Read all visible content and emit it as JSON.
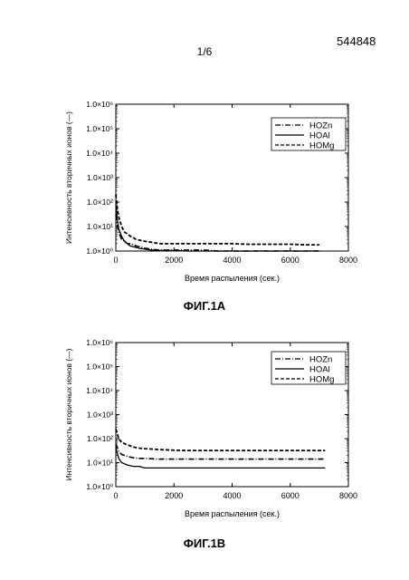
{
  "header": {
    "page": "1/6",
    "doc_number": "544848"
  },
  "chart_data": [
    {
      "type": "line",
      "caption": "ФИГ.1А",
      "xlabel": "Время распыления (сек.)",
      "ylabel": "Интенсивность вторичных ионов (—)",
      "x_ticks": [
        "0",
        "2000",
        "4000",
        "6000",
        "8000"
      ],
      "y_ticks": [
        "1.0×10⁰",
        "1.0×10¹",
        "1.0×10²",
        "1.0×10³",
        "1.0×10⁴",
        "1.0×10⁵",
        "1.0×10⁶"
      ],
      "xlim": [
        0,
        8000
      ],
      "ylim_log10": [
        0,
        6
      ],
      "legend_position": "top-right",
      "series": [
        {
          "name": "HOZn",
          "style": "dashdot",
          "x": [
            0,
            50,
            100,
            200,
            300,
            400,
            500,
            600,
            700,
            800,
            1000,
            1200,
            1500,
            2000,
            2500,
            3000,
            3500,
            4000,
            4500,
            5000,
            5500,
            6000,
            6500,
            7000
          ],
          "y": [
            30,
            12,
            6,
            3,
            2.5,
            2,
            2,
            1.8,
            1.6,
            1.5,
            1.3,
            1.2,
            1.1,
            1.1,
            1.1,
            1.1,
            1.0,
            1.0,
            1.0,
            1.0,
            1.0,
            1.0,
            1.0,
            1.0
          ]
        },
        {
          "name": "HOAl",
          "style": "solid",
          "x": [
            0,
            50,
            100,
            200,
            300,
            400,
            500,
            600,
            700,
            800,
            1000,
            1200,
            1500,
            2000,
            2500,
            3000,
            3500,
            4000,
            4500,
            5000,
            5500,
            6000,
            6500,
            7000
          ],
          "y": [
            80,
            20,
            8,
            4,
            2.5,
            2,
            1.6,
            1.5,
            1.4,
            1.3,
            1.2,
            1.1,
            1.05,
            1.05,
            1.0,
            1.0,
            1.0,
            1.0,
            1.0,
            1.0,
            1.0,
            1.0,
            1.0,
            1.0
          ]
        },
        {
          "name": "HOMg",
          "style": "dashed",
          "x": [
            0,
            50,
            100,
            200,
            300,
            400,
            500,
            600,
            700,
            800,
            1000,
            1200,
            1500,
            2000,
            2500,
            3000,
            3500,
            4000,
            4500,
            5000,
            5500,
            6000,
            6500,
            7000
          ],
          "y": [
            200,
            60,
            25,
            10,
            6,
            5,
            4,
            3.5,
            3,
            2.8,
            2.5,
            2.3,
            2,
            2,
            2,
            2,
            2,
            2,
            1.9,
            1.9,
            1.9,
            1.9,
            1.8,
            1.8
          ]
        }
      ]
    },
    {
      "type": "line",
      "caption": "ФИГ.1В",
      "xlabel": "Время распыления (сек.)",
      "ylabel": "Интенсивность вторичных ионов (—)",
      "x_ticks": [
        "0",
        "2000",
        "4000",
        "6000",
        "8000"
      ],
      "y_ticks": [
        "1.0×10⁰",
        "1.0×10¹",
        "1.0×10²",
        "1.0×10³",
        "1.0×10⁴",
        "1.0×10⁵",
        "1.0×10⁶"
      ],
      "xlim": [
        0,
        8000
      ],
      "ylim_log10": [
        0,
        6
      ],
      "legend_position": "top-right",
      "series": [
        {
          "name": "HOZn",
          "style": "dashdot",
          "x": [
            0,
            100,
            200,
            400,
            600,
            800,
            1000,
            1500,
            2000,
            2500,
            3000,
            3500,
            4000,
            4500,
            5000,
            5500,
            6000,
            6500,
            7000,
            7200
          ],
          "y": [
            60,
            30,
            22,
            18,
            16,
            15,
            15,
            14,
            14,
            14,
            14,
            14,
            14,
            14,
            14,
            14,
            14,
            14,
            14,
            14
          ]
        },
        {
          "name": "HOAl",
          "style": "solid",
          "x": [
            0,
            100,
            200,
            400,
            600,
            800,
            1000,
            1500,
            2000,
            2500,
            3000,
            3500,
            4000,
            4500,
            5000,
            5500,
            6000,
            6500,
            7000,
            7200
          ],
          "y": [
            40,
            15,
            10,
            8,
            7,
            7,
            6,
            6,
            6,
            6,
            6,
            6,
            6,
            6,
            6,
            6,
            6,
            6,
            6,
            6
          ]
        },
        {
          "name": "HOMg",
          "style": "dashed",
          "x": [
            0,
            100,
            200,
            400,
            600,
            800,
            1000,
            1500,
            2000,
            2500,
            3000,
            3500,
            4000,
            4500,
            5000,
            5500,
            6000,
            6500,
            7000,
            7200
          ],
          "y": [
            250,
            100,
            70,
            55,
            45,
            40,
            38,
            35,
            33,
            32,
            32,
            32,
            32,
            32,
            32,
            32,
            32,
            32,
            32,
            32
          ]
        }
      ]
    }
  ]
}
